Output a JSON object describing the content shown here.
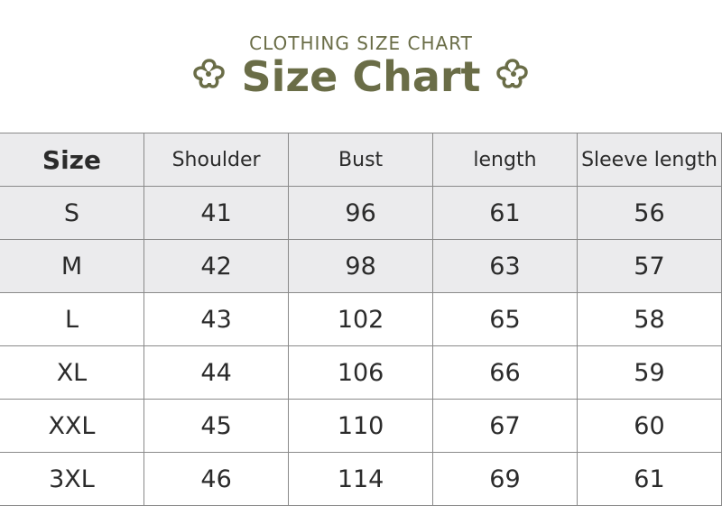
{
  "header": {
    "subtitle": "CLOTHING SIZE CHART",
    "title": "Size Chart",
    "accent": "#6a6d47"
  },
  "table": {
    "columns": [
      "Size",
      "Shoulder",
      "Bust",
      "length",
      "Sleeve length"
    ],
    "rows": [
      [
        "S",
        "41",
        "96",
        "61",
        "56"
      ],
      [
        "M",
        "42",
        "98",
        "63",
        "57"
      ],
      [
        "L",
        "43",
        "102",
        "65",
        "58"
      ],
      [
        "XL",
        "44",
        "106",
        "66",
        "59"
      ],
      [
        "XXL",
        "45",
        "110",
        "67",
        "60"
      ],
      [
        "3XL",
        "46",
        "114",
        "69",
        "61"
      ]
    ]
  }
}
